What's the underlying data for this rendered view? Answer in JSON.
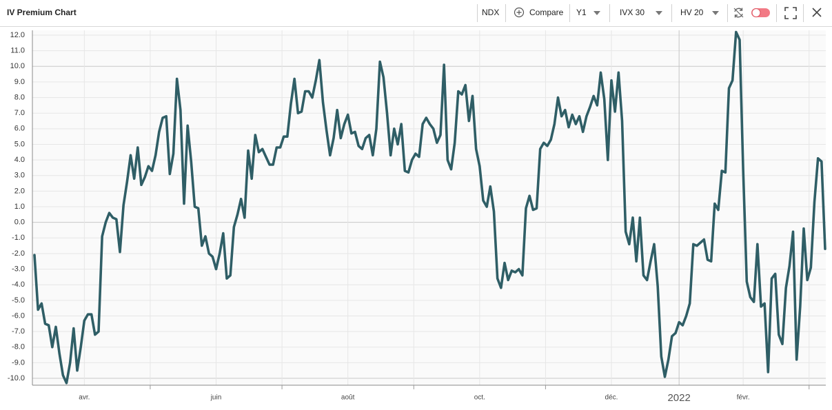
{
  "toolbar": {
    "title": "IV Premium Chart",
    "symbol": "NDX",
    "compare": "Compare",
    "period": "Y1",
    "iv": "IVX 30",
    "hv": "HV 20"
  },
  "chart_data": {
    "type": "line",
    "color": "#2f5e66",
    "categories": [
      null,
      null,
      null,
      null,
      null,
      null,
      null,
      null,
      null,
      null,
      null,
      null,
      null,
      null,
      "avr.",
      null,
      null,
      null,
      null,
      null,
      null,
      null,
      null,
      null,
      null,
      null,
      null,
      null,
      null,
      null,
      null,
      null,
      null,
      null,
      null,
      null,
      null,
      null,
      null,
      null,
      null,
      null,
      null,
      null,
      null,
      null,
      null,
      null,
      null,
      null,
      null,
      "juin",
      null,
      null,
      null,
      null,
      null,
      null,
      null,
      null,
      null,
      null,
      null,
      null,
      null,
      null,
      null,
      null,
      null,
      null,
      null,
      null,
      null,
      null,
      null,
      null,
      null,
      null,
      null,
      null,
      null,
      null,
      null,
      null,
      null,
      null,
      null,
      null,
      "août",
      null,
      null,
      null,
      null,
      null,
      null,
      null,
      null,
      null,
      null,
      null,
      null,
      null,
      null,
      null,
      null,
      null,
      null,
      null,
      null,
      null,
      null,
      null,
      null,
      null,
      null,
      null,
      null,
      null,
      null,
      null,
      null,
      null,
      null,
      null,
      null,
      "oct.",
      null,
      null,
      null,
      null,
      null,
      null,
      null,
      null,
      null,
      null,
      null,
      null,
      null,
      null,
      null,
      null,
      null,
      null,
      null,
      null,
      null,
      null,
      null,
      null,
      null,
      null,
      null,
      null,
      null,
      null,
      null,
      null,
      null,
      null,
      null,
      null,
      "déc.",
      null,
      null,
      null,
      null,
      null,
      null,
      null,
      null,
      null,
      null,
      null,
      null,
      null,
      null,
      null,
      null,
      null,
      null,
      "2022",
      null,
      null,
      null,
      null,
      null,
      null,
      null,
      null,
      null,
      null,
      null,
      null,
      null,
      null,
      null,
      null,
      null,
      "févr.",
      null,
      null,
      null,
      null,
      null,
      null,
      null,
      null,
      null,
      null,
      null,
      null,
      null,
      null,
      null,
      null,
      null,
      null,
      null,
      null,
      null,
      null,
      null
    ],
    "values": [
      -2.1,
      -5.6,
      -5.2,
      -6.5,
      -6.6,
      -8.0,
      -6.7,
      -8.4,
      -9.8,
      -10.3,
      -9.0,
      -6.8,
      -9.5,
      -8.0,
      -6.3,
      -5.9,
      -5.9,
      -7.2,
      -7.0,
      -0.9,
      0.0,
      0.6,
      0.3,
      0.2,
      -1.9,
      1.1,
      2.6,
      4.3,
      2.8,
      4.8,
      2.4,
      2.9,
      3.6,
      3.3,
      4.3,
      5.8,
      6.7,
      6.8,
      3.1,
      4.4,
      9.2,
      7.2,
      1.2,
      6.2,
      3.9,
      1.0,
      0.9,
      -1.5,
      -0.9,
      -2.0,
      -2.2,
      -3.0,
      -2.0,
      -0.7,
      -3.6,
      -3.4,
      -0.3,
      0.5,
      1.5,
      0.3,
      4.6,
      2.8,
      5.6,
      4.5,
      4.7,
      4.2,
      3.7,
      3.7,
      4.8,
      4.8,
      5.5,
      5.5,
      7.6,
      9.2,
      7.0,
      7.1,
      8.4,
      8.4,
      8.0,
      9.1,
      10.4,
      7.7,
      5.9,
      4.3,
      5.4,
      7.2,
      5.4,
      6.3,
      6.9,
      5.7,
      5.8,
      4.9,
      4.7,
      5.4,
      5.6,
      4.3,
      6.0,
      10.3,
      9.3,
      7.0,
      4.3,
      6.0,
      5.0,
      6.3,
      3.3,
      3.2,
      4.0,
      4.4,
      4.2,
      6.3,
      6.7,
      6.3,
      6.0,
      5.1,
      5.6,
      10.1,
      4.0,
      3.4,
      5.1,
      8.4,
      8.2,
      8.8,
      6.5,
      8.1,
      4.7,
      3.6,
      1.4,
      1.0,
      2.3,
      0.7,
      -3.6,
      -4.2,
      -2.6,
      -3.7,
      -3.1,
      -3.2,
      -3.0,
      -3.4,
      0.9,
      1.7,
      0.8,
      0.9,
      4.7,
      5.1,
      4.9,
      5.3,
      6.3,
      8.0,
      6.8,
      7.2,
      6.1,
      6.9,
      6.3,
      6.8,
      5.8,
      6.8,
      7.4,
      8.1,
      7.5,
      9.6,
      7.9,
      4.0,
      9.1,
      7.1,
      9.6,
      6.5,
      -0.6,
      -1.4,
      0.3,
      -2.5,
      0.3,
      -3.4,
      -3.7,
      -2.5,
      -1.4,
      -4.1,
      -8.6,
      -9.9,
      -8.8,
      -7.3,
      -7.1,
      -6.4,
      -6.6,
      -6.0,
      -5.2,
      -1.4,
      -1.5,
      -1.3,
      -1.1,
      -2.4,
      -2.5,
      1.2,
      0.8,
      3.3,
      3.2,
      8.6,
      9.1,
      12.2,
      11.7,
      3.3,
      -3.8,
      -4.8,
      -5.1,
      -1.4,
      -5.4,
      -5.2,
      -9.6,
      -3.6,
      -3.3,
      -7.2,
      -7.8,
      -4.2,
      -2.8,
      -0.6,
      -8.8,
      -5.4,
      -0.4,
      -3.7,
      -2.9,
      1.3,
      4.1,
      3.9,
      -1.7
    ],
    "ylim": [
      -10.44,
      12.31
    ],
    "yticks": [
      {
        "value": 12,
        "label": "12.0"
      },
      {
        "value": 11,
        "label": "11.0"
      },
      {
        "value": 10,
        "label": "10.0"
      },
      {
        "value": 9,
        "label": "9.0"
      },
      {
        "value": 8,
        "label": "8.0"
      },
      {
        "value": 7,
        "label": "7.0"
      },
      {
        "value": 6,
        "label": "6.0"
      },
      {
        "value": 5,
        "label": "5.0"
      },
      {
        "value": 4,
        "label": "4.0"
      },
      {
        "value": 3,
        "label": "3.0"
      },
      {
        "value": 2,
        "label": "2.0"
      },
      {
        "value": 1,
        "label": "1.0"
      },
      {
        "value": 0,
        "label": "0.0"
      },
      {
        "value": -1,
        "label": "-1.0"
      },
      {
        "value": -2,
        "label": "-2.0"
      },
      {
        "value": -3,
        "label": "-3.0"
      },
      {
        "value": -4,
        "label": "-4.0"
      },
      {
        "value": -5,
        "label": "-5.0"
      },
      {
        "value": -6,
        "label": "-6.0"
      },
      {
        "value": -7,
        "label": "-7.0"
      },
      {
        "value": -8,
        "label": "-8.0"
      },
      {
        "value": -9,
        "label": "-9.0"
      },
      {
        "value": -10,
        "label": "-10.0"
      }
    ],
    "grid": true
  }
}
